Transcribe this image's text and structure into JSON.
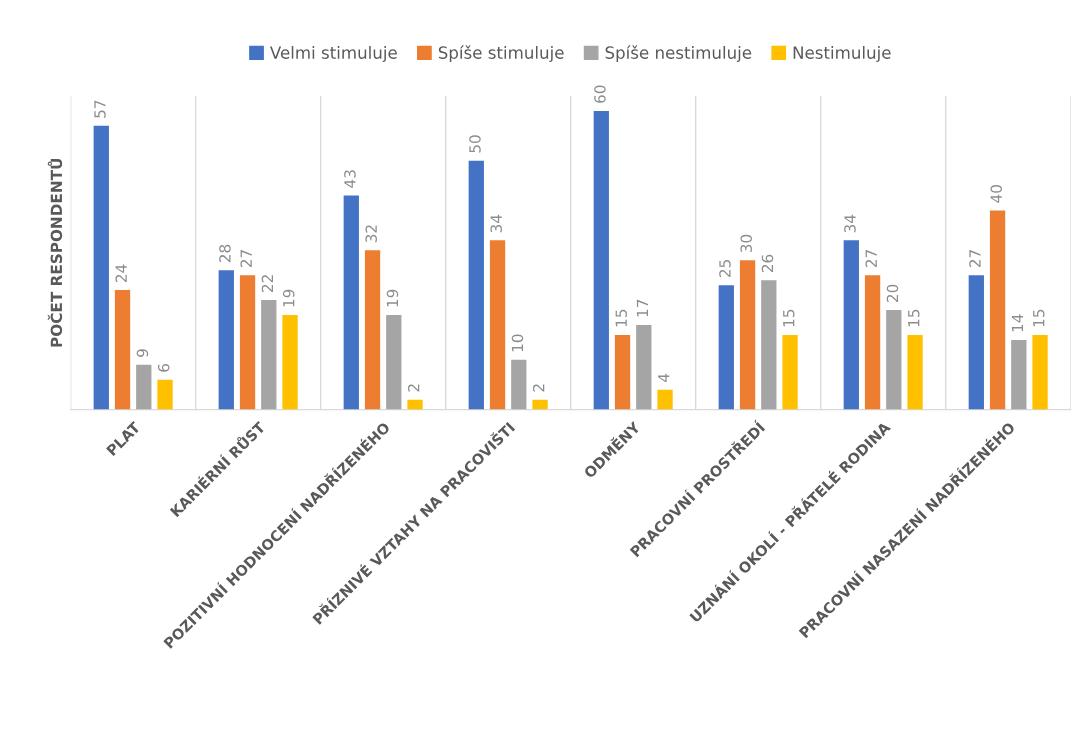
{
  "chart_data": {
    "type": "bar",
    "ylabel": "POČET RESPONDENTŮ",
    "categories": [
      "PLAT",
      "KARIÉRNÍ RŮST",
      "POZITIVNÍ HODNOCENÍ NADŘÍZENÉHO",
      "PŘÍZNIVÉ VZTAHY NA PRACOVIŠTI",
      "ODMĚNY",
      "PRACOVNÍ PROSTŘEDÍ",
      "UZNÁNÍ OKOLÍ - PŘÁTELÉ RODINA",
      "PRACOVNÍ NASAZENÍ NADŘÍZENÉHO"
    ],
    "series": [
      {
        "name": "Velmi stimuluje",
        "color": "#4472c4",
        "values": [
          57,
          28,
          43,
          50,
          60,
          25,
          34,
          27
        ]
      },
      {
        "name": "Spíše stimuluje",
        "color": "#ed7d31",
        "values": [
          24,
          27,
          32,
          34,
          15,
          30,
          27,
          40
        ]
      },
      {
        "name": "Spíše nestimuluje",
        "color": "#a5a5a5",
        "values": [
          9,
          22,
          19,
          10,
          17,
          26,
          20,
          14
        ]
      },
      {
        "name": "Nestimuluje",
        "color": "#ffc000",
        "values": [
          6,
          19,
          2,
          2,
          4,
          15,
          15,
          15
        ]
      }
    ],
    "data_labels": true,
    "grid": "x",
    "legend": "top",
    "tick_labels": "x"
  }
}
